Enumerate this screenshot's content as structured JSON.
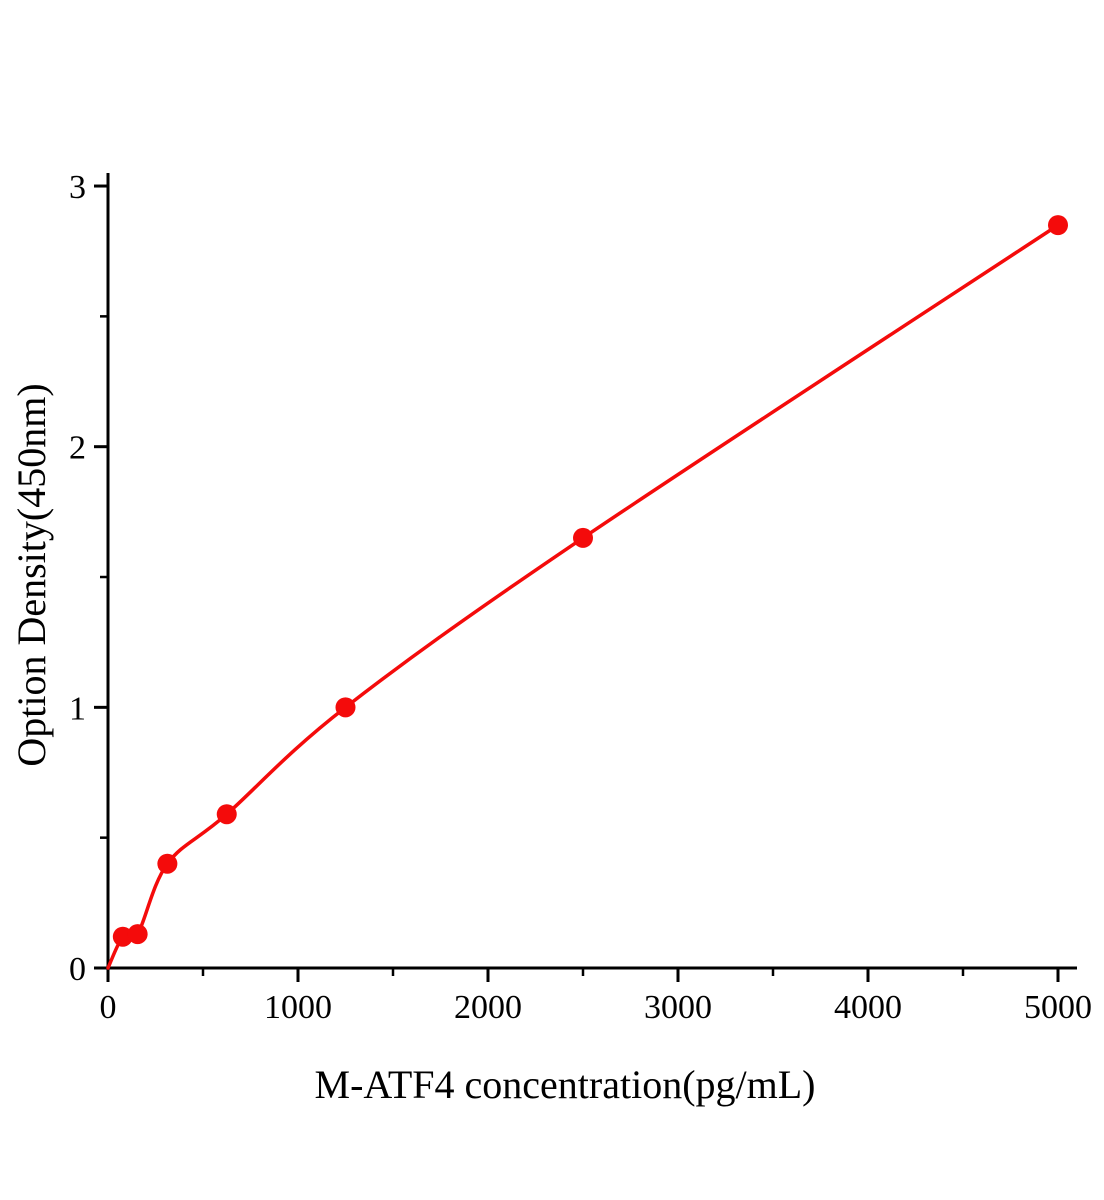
{
  "chart_data": {
    "type": "scatter",
    "title": "",
    "xlabel": "M-ATF4 concentration(pg/mL)",
    "ylabel": "Option Density(450nm)",
    "x": [
      78,
      156,
      312.5,
      625,
      1250,
      2500,
      5000
    ],
    "y": [
      0.12,
      0.13,
      0.4,
      0.59,
      1.0,
      1.65,
      2.85
    ],
    "curve_start": {
      "x": 0,
      "y": 0
    },
    "xlim": [
      0,
      5100
    ],
    "ylim": [
      0,
      3.05
    ],
    "xticks": [
      0,
      1000,
      2000,
      3000,
      4000,
      5000
    ],
    "yticks": [
      0,
      1,
      2,
      3
    ],
    "x_minor_step": 500,
    "y_minor_step": 0.5,
    "grid": false,
    "legend": "none",
    "line_color": "#f40b0b",
    "marker_color": "#f40b0b",
    "axis_color": "#000000"
  }
}
